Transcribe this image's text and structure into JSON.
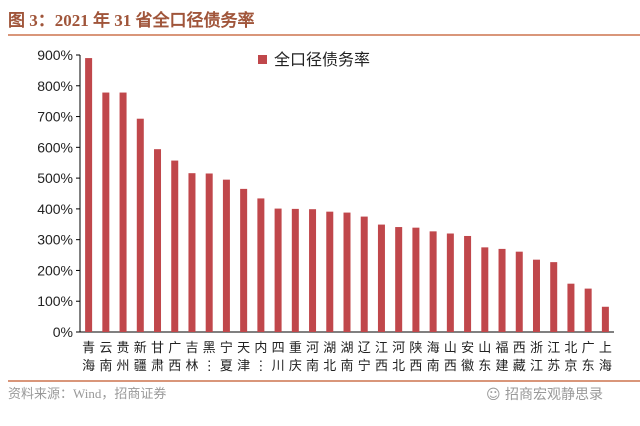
{
  "title": "图 3：2021 年 31 省全口径债务率",
  "source": "资料来源：Wind，招商证券",
  "watermark": "招商宏观静思录",
  "chart_data": {
    "type": "bar",
    "legend": {
      "label": "全口径债务率",
      "position": "top-right"
    },
    "color": "#c0474b",
    "ylim": [
      0,
      900
    ],
    "yticks": [
      "0%",
      "100%",
      "200%",
      "300%",
      "400%",
      "500%",
      "600%",
      "700%",
      "800%",
      "900%"
    ],
    "categories": [
      [
        "青",
        "海"
      ],
      [
        "云",
        "南"
      ],
      [
        "贵",
        "州"
      ],
      [
        "新",
        "疆"
      ],
      [
        "甘",
        "肃"
      ],
      [
        "广",
        "西"
      ],
      [
        "吉",
        "林"
      ],
      [
        "黑",
        "⋮"
      ],
      [
        "宁",
        "夏"
      ],
      [
        "天",
        "津"
      ],
      [
        "内",
        "⋮"
      ],
      [
        "四",
        "川"
      ],
      [
        "重",
        "庆"
      ],
      [
        "河",
        "南"
      ],
      [
        "湖",
        "北"
      ],
      [
        "湖",
        "南"
      ],
      [
        "辽",
        "宁"
      ],
      [
        "江",
        "西"
      ],
      [
        "河",
        "北"
      ],
      [
        "陕",
        "西"
      ],
      [
        "海",
        "南"
      ],
      [
        "山",
        "西"
      ],
      [
        "安",
        "徽"
      ],
      [
        "山",
        "东"
      ],
      [
        "福",
        "建"
      ],
      [
        "西",
        "藏"
      ],
      [
        "浙",
        "江"
      ],
      [
        "江",
        "苏"
      ],
      [
        "北",
        "京"
      ],
      [
        "广",
        "东"
      ],
      [
        "上",
        "海"
      ]
    ],
    "values": [
      890,
      778,
      778,
      693,
      594,
      557,
      516,
      515,
      495,
      465,
      434,
      401,
      400,
      399,
      391,
      388,
      375,
      349,
      341,
      339,
      327,
      320,
      312,
      275,
      270,
      261,
      235,
      227,
      157,
      141,
      82
    ],
    "unit": "%",
    "grid": false
  }
}
